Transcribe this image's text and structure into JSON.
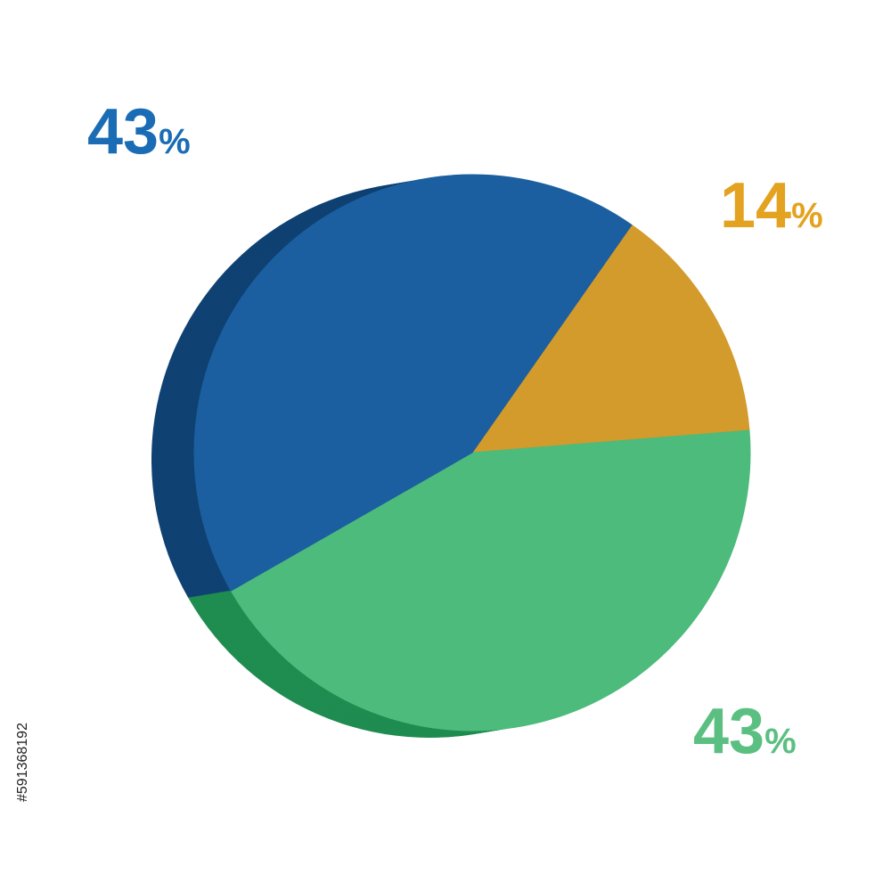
{
  "chart_data": {
    "type": "pie",
    "values": [
      14,
      43,
      43
    ],
    "value_labels": [
      "14%",
      "43%",
      "43%"
    ],
    "colors": [
      "#d39a2c",
      "#4cbb7b",
      "#1b5fa0"
    ],
    "side_colors": [
      "#8f6a22",
      "#1f8c50",
      "#0f4172"
    ],
    "label_colors": [
      "#e3a21f",
      "#5cbf82",
      "#1a6cb5"
    ],
    "start_angle": 35
  },
  "stock_id": "#591368192"
}
